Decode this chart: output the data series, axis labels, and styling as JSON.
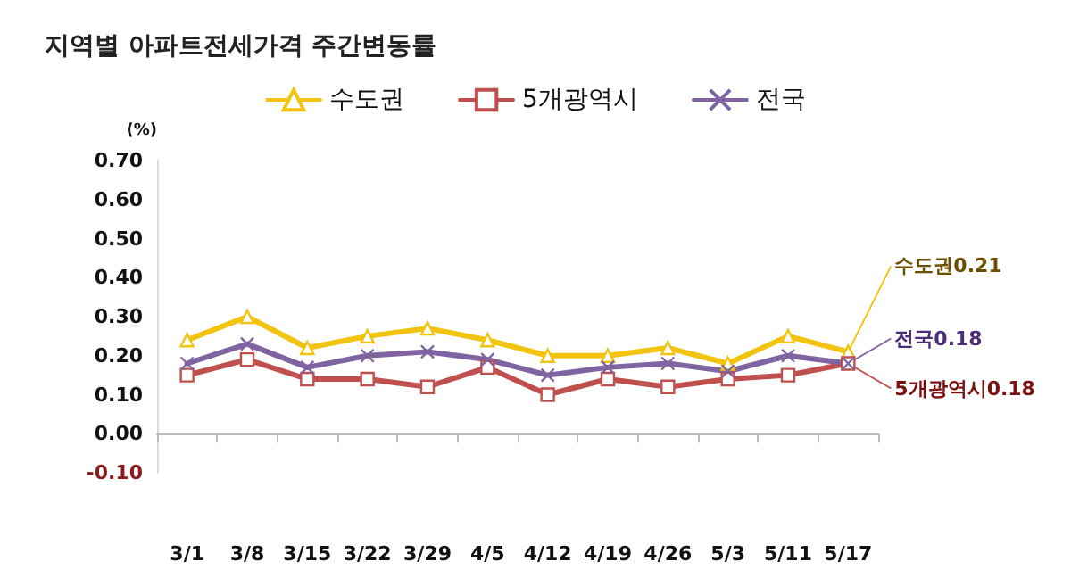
{
  "chart_data": {
    "type": "line",
    "title": "지역별 아파트전세가격 주간변동률",
    "ylabel": "(%)",
    "categories": [
      "3/1",
      "3/8",
      "3/15",
      "3/22",
      "3/29",
      "4/5",
      "4/12",
      "4/19",
      "4/26",
      "5/3",
      "5/11",
      "5/17"
    ],
    "series": [
      {
        "name": "수도권",
        "color": "#f2c40f",
        "marker": "triangle",
        "values": [
          0.24,
          0.3,
          0.22,
          0.25,
          0.27,
          0.24,
          0.2,
          0.2,
          0.22,
          0.18,
          0.25,
          0.21
        ]
      },
      {
        "name": "5개광역시",
        "color": "#c0504d",
        "marker": "square",
        "values": [
          0.15,
          0.19,
          0.14,
          0.14,
          0.12,
          0.17,
          0.1,
          0.14,
          0.12,
          0.14,
          0.15,
          0.18
        ]
      },
      {
        "name": "전국",
        "color": "#8064a2",
        "marker": "cross",
        "values": [
          0.18,
          0.23,
          0.17,
          0.2,
          0.21,
          0.19,
          0.15,
          0.17,
          0.18,
          0.16,
          0.2,
          0.18
        ]
      }
    ],
    "ylim": [
      -0.1,
      0.7
    ],
    "yticks": [
      {
        "value": -0.1,
        "label": "-0.10"
      },
      {
        "value": 0,
        "label": "0.00"
      },
      {
        "value": 0.1,
        "label": "0.10"
      },
      {
        "value": 0.2,
        "label": "0.20"
      },
      {
        "value": 0.3,
        "label": "0.30"
      },
      {
        "value": 0.4,
        "label": "0.40"
      },
      {
        "value": 0.5,
        "label": "0.50"
      },
      {
        "value": 0.6,
        "label": "0.60"
      },
      {
        "value": 0.7,
        "label": "0.70"
      }
    ],
    "legend": "top",
    "annotations": [
      {
        "text": "수도권0.21",
        "x": "5/17",
        "y": 0.21
      },
      {
        "text": "전국0.18",
        "x": "5/17",
        "y": 0.18
      },
      {
        "text": "5개광역시0.18",
        "x": "5/17",
        "y": 0.18
      }
    ]
  }
}
